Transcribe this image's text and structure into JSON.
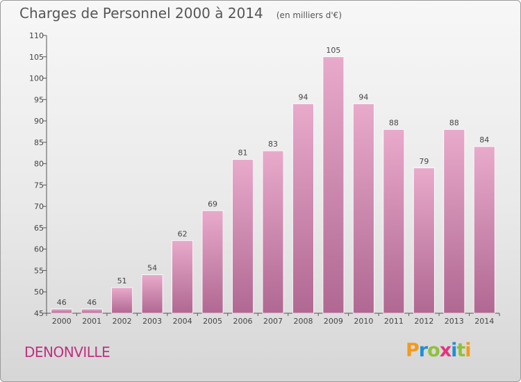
{
  "header": {
    "title": "Charges de Personnel 2000 à 2014",
    "subtitle": "(en milliers d'€)"
  },
  "footer": {
    "town": "DENONVILLE",
    "logo": {
      "letters": [
        "P",
        "r",
        "o",
        "x",
        "i",
        "t",
        "i"
      ],
      "colors": [
        "#f39a1b",
        "#1f8fd6",
        "#8fc13c",
        "#e6337b",
        "#1f8fd6",
        "#8fc13c",
        "#f39a1b"
      ]
    }
  },
  "colors": {
    "bar_top": "#e8aacb",
    "bar_bottom": "#b06892",
    "title": "#555555",
    "town": "#c0307f"
  },
  "chart_data": {
    "type": "bar",
    "title": "Charges de Personnel 2000 à 2014",
    "subtitle": "(en milliers d'€)",
    "categories": [
      "2000",
      "2001",
      "2002",
      "2003",
      "2004",
      "2005",
      "2006",
      "2007",
      "2008",
      "2009",
      "2010",
      "2011",
      "2012",
      "2013",
      "2014"
    ],
    "values": [
      46,
      46,
      51,
      54,
      62,
      69,
      81,
      83,
      94,
      105,
      94,
      88,
      79,
      88,
      84
    ],
    "xlabel": "",
    "ylabel": "",
    "ylim": [
      45,
      110
    ],
    "yticks": [
      45,
      50,
      55,
      60,
      65,
      70,
      75,
      80,
      85,
      90,
      95,
      100,
      105,
      110
    ],
    "grid": false,
    "legend": "none"
  }
}
